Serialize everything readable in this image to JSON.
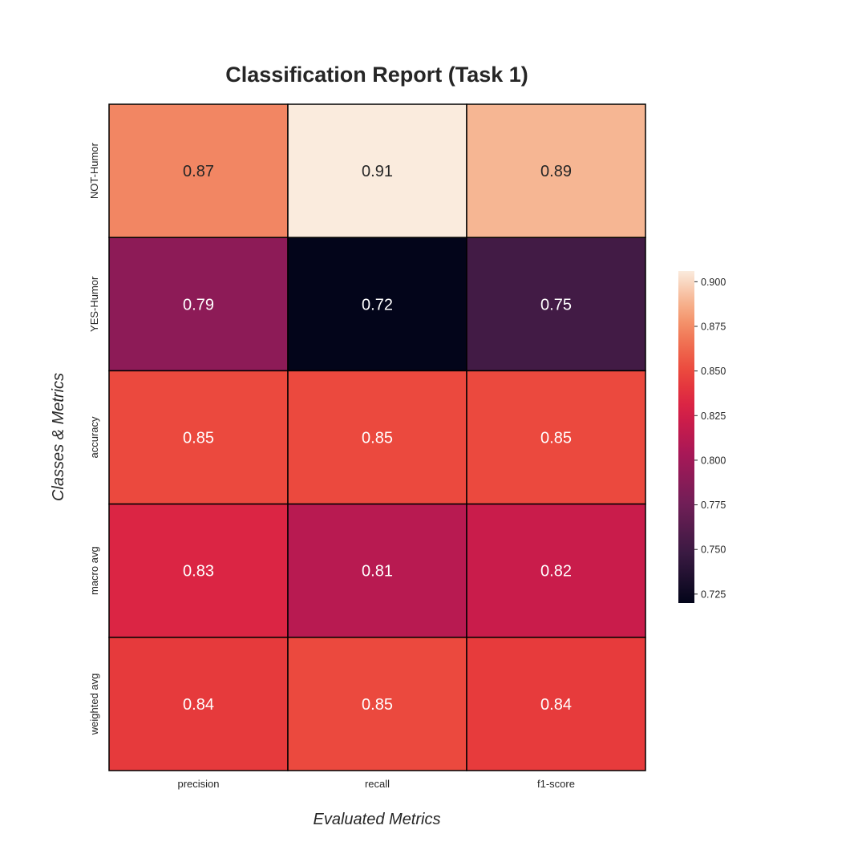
{
  "chart_data": {
    "type": "heatmap",
    "title": "Classification Report (Task 1)",
    "xlabel": "Evaluated Metrics",
    "ylabel": "Classes & Metrics",
    "x_categories": [
      "precision",
      "recall",
      "f1-score"
    ],
    "y_categories": [
      "NOT-Humor",
      "YES-Humor",
      "accuracy",
      "macro avg",
      "weighted avg"
    ],
    "values": [
      [
        0.8734,
        0.906,
        0.8894
      ],
      [
        0.79,
        0.72,
        0.752
      ],
      [
        0.85,
        0.85,
        0.85
      ],
      [
        0.8317,
        0.812,
        0.8207
      ],
      [
        0.843,
        0.85,
        0.844
      ]
    ],
    "cell_labels": [
      [
        "0.87",
        "0.91",
        "0.89"
      ],
      [
        "0.79",
        "0.72",
        "0.75"
      ],
      [
        "0.85",
        "0.85",
        "0.85"
      ],
      [
        "0.83",
        "0.81",
        "0.82"
      ],
      [
        "0.84",
        "0.85",
        "0.84"
      ]
    ],
    "colormap": "rocket",
    "vmin": 0.72,
    "vmax": 0.906,
    "colorbar_ticks": [
      "0.900",
      "0.875",
      "0.850",
      "0.825",
      "0.800",
      "0.775",
      "0.750",
      "0.725"
    ],
    "grid_color": "#000000"
  }
}
